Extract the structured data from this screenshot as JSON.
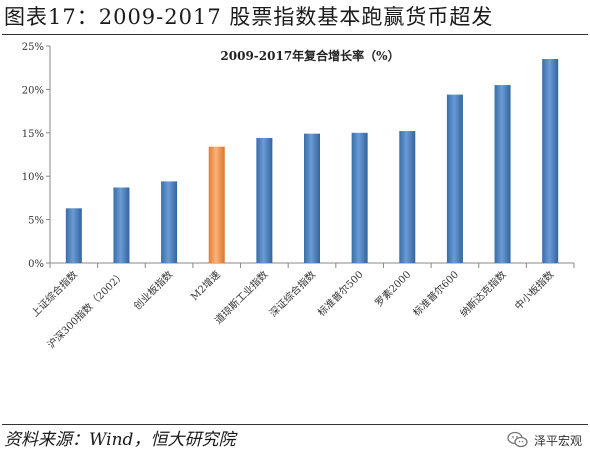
{
  "figure_title": "图表17：2009-2017 股票指数基本跑赢货币超发",
  "source_text": "资料来源：Wind，恒大研究院",
  "brand_label": "泽平宏观",
  "chart_data": {
    "type": "bar",
    "title": "2009-2017年复合增长率（%）",
    "xlabel": "",
    "ylabel": "",
    "ylim": [
      0,
      25
    ],
    "yticks": [
      "0%",
      "5%",
      "10%",
      "15%",
      "20%",
      "25%"
    ],
    "grid": false,
    "categories": [
      "上证综合指数",
      "沪深300指数（2002）",
      "创业板指数",
      "M2增速",
      "道琼斯工业指数",
      "深证综合指数",
      "标准普尔500",
      "罗素2000",
      "标准普尔600",
      "纳斯达克指数",
      "中小板指数"
    ],
    "values": [
      6.3,
      8.7,
      9.4,
      13.4,
      14.4,
      14.9,
      15.0,
      15.2,
      19.4,
      20.5,
      23.5
    ],
    "colors": {
      "default": "#4f81bd",
      "highlight": "#f79646"
    },
    "highlight_index": 3
  }
}
